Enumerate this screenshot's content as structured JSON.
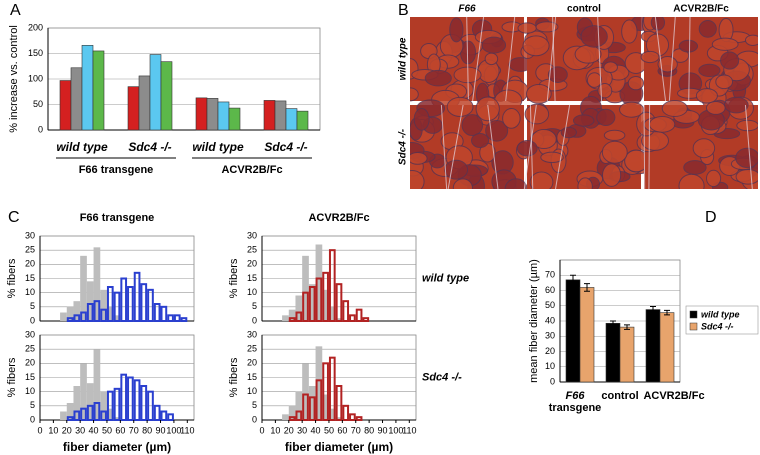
{
  "panel_labels": [
    "A",
    "B",
    "C",
    "D"
  ],
  "image_grid": {
    "column_headers": [
      "F66",
      "control",
      "ACVR2B/Fc"
    ],
    "row_labels": [
      "wild type",
      "Sdc4 -/-"
    ]
  },
  "chart_data": [
    {
      "type": "bar",
      "ylabel": "% increase vs. control",
      "categories": [
        "wild type",
        "Sdc4 -/-",
        "wild type",
        "Sdc4 -/-"
      ],
      "group_labels": [
        "F66 transgene",
        "ACVR2B/Fc"
      ],
      "series": [
        {
          "color": "#d42020",
          "values": [
            97,
            85,
            63,
            58
          ]
        },
        {
          "color": "#8c8c8c",
          "values": [
            122,
            106,
            62,
            57
          ]
        },
        {
          "color": "#5bc8f0",
          "values": [
            166,
            148,
            55,
            42
          ]
        },
        {
          "color": "#5cb84a",
          "values": [
            155,
            134,
            43,
            37
          ]
        }
      ],
      "ylim": [
        0,
        200
      ],
      "yticks": [
        0,
        50,
        100,
        150,
        200
      ],
      "grid": true
    },
    {
      "type": "histogram",
      "title": "F66 transgene",
      "ylabel": "% fibers",
      "bins": [
        15,
        20,
        25,
        30,
        35,
        40,
        45,
        50,
        55,
        60,
        65,
        70,
        75,
        80,
        85,
        90,
        95,
        100,
        105,
        110
      ],
      "series": [
        {
          "color": "#bdbdbd",
          "filled": true,
          "values": [
            3,
            5,
            7,
            23,
            14,
            26,
            11,
            5,
            2,
            0,
            0,
            0,
            0,
            0,
            0,
            0,
            0,
            0,
            0
          ]
        },
        {
          "color": "#2a3fcf",
          "filled": false,
          "values": [
            0,
            1,
            2,
            3,
            6,
            7,
            4,
            12,
            10,
            15,
            12,
            17,
            13,
            11,
            6,
            5,
            2,
            2,
            1
          ]
        }
      ],
      "xlim": [
        0,
        115
      ],
      "ylim": [
        0,
        30
      ],
      "yticks": [
        0,
        5,
        10,
        15,
        20,
        25,
        30
      ],
      "grid": true
    },
    {
      "type": "histogram",
      "ylabel": "% fibers",
      "xlabel": "fiber diameter (µm)",
      "bins": [
        15,
        20,
        25,
        30,
        35,
        40,
        45,
        50,
        55,
        60,
        65,
        70,
        75,
        80,
        85,
        90,
        95,
        100,
        105,
        110
      ],
      "series": [
        {
          "color": "#bdbdbd",
          "filled": true,
          "values": [
            3,
            6,
            12,
            20,
            13,
            25,
            10,
            4,
            1,
            0,
            0,
            0,
            0,
            0,
            0,
            0,
            0,
            0,
            0
          ]
        },
        {
          "color": "#2a3fcf",
          "filled": false,
          "values": [
            0,
            1,
            3,
            4,
            5,
            6,
            3,
            10,
            11,
            16,
            15,
            14,
            12,
            10,
            5,
            3,
            2,
            0,
            0
          ]
        }
      ],
      "xlim": [
        0,
        115
      ],
      "xticks": [
        0,
        10,
        20,
        30,
        40,
        50,
        60,
        70,
        80,
        90,
        100,
        110
      ],
      "ylim": [
        0,
        30
      ],
      "yticks": [
        0,
        5,
        10,
        15,
        20,
        25,
        30
      ],
      "grid": true
    },
    {
      "type": "histogram",
      "title": "ACVR2B/Fc",
      "ylabel": "% fibers",
      "row_label": "wild type",
      "bins": [
        15,
        20,
        25,
        30,
        35,
        40,
        45,
        50,
        55,
        60,
        65,
        70,
        75,
        80
      ],
      "series": [
        {
          "color": "#bdbdbd",
          "filled": true,
          "values": [
            2,
            4,
            9,
            23,
            13,
            27,
            11,
            5,
            1,
            0,
            0,
            0,
            0
          ]
        },
        {
          "color": "#b22222",
          "filled": false,
          "values": [
            0,
            1,
            3,
            10,
            12,
            15,
            17,
            25,
            13,
            7,
            2,
            4,
            1
          ]
        }
      ],
      "xlim": [
        0,
        115
      ],
      "ylim": [
        0,
        30
      ],
      "yticks": [
        0,
        5,
        10,
        15,
        20,
        25,
        30
      ],
      "grid": true
    },
    {
      "type": "histogram",
      "ylabel": "% fibers",
      "xlabel": "fiber diameter (µm)",
      "row_label": "Sdc4 -/-",
      "bins": [
        15,
        20,
        25,
        30,
        35,
        40,
        45,
        50,
        55,
        60,
        65,
        70,
        75,
        80
      ],
      "series": [
        {
          "color": "#bdbdbd",
          "filled": true,
          "values": [
            2,
            5,
            10,
            20,
            12,
            26,
            9,
            4,
            1,
            0,
            0,
            0,
            0
          ]
        },
        {
          "color": "#b22222",
          "filled": false,
          "values": [
            0,
            1,
            3,
            9,
            8,
            14,
            20,
            22,
            12,
            5,
            2,
            1,
            0
          ]
        }
      ],
      "xlim": [
        0,
        115
      ],
      "xticks": [
        0,
        10,
        20,
        30,
        40,
        50,
        60,
        70,
        80,
        90,
        100,
        110
      ],
      "ylim": [
        0,
        30
      ],
      "yticks": [
        0,
        5,
        10,
        15,
        20,
        25,
        30
      ],
      "grid": true
    },
    {
      "type": "bar",
      "ylabel": "mean fiber diameter (µm)",
      "categories": [
        [
          "F66",
          "transgene"
        ],
        [
          "control"
        ],
        [
          "ACVR2B/Fc"
        ]
      ],
      "series": [
        {
          "name": "wild type",
          "color": "#000000",
          "values": [
            67,
            38.5,
            47.5
          ],
          "errors": [
            3,
            1.5,
            2
          ]
        },
        {
          "name": "Sdc4 -/-",
          "color": "#e8a46c",
          "values": [
            62,
            36,
            45.5
          ],
          "errors": [
            2.5,
            1.5,
            1.5
          ]
        }
      ],
      "ylim": [
        0,
        80
      ],
      "yticks": [
        0,
        10,
        20,
        30,
        40,
        50,
        60,
        70
      ],
      "grid": true,
      "legend": "right"
    }
  ]
}
